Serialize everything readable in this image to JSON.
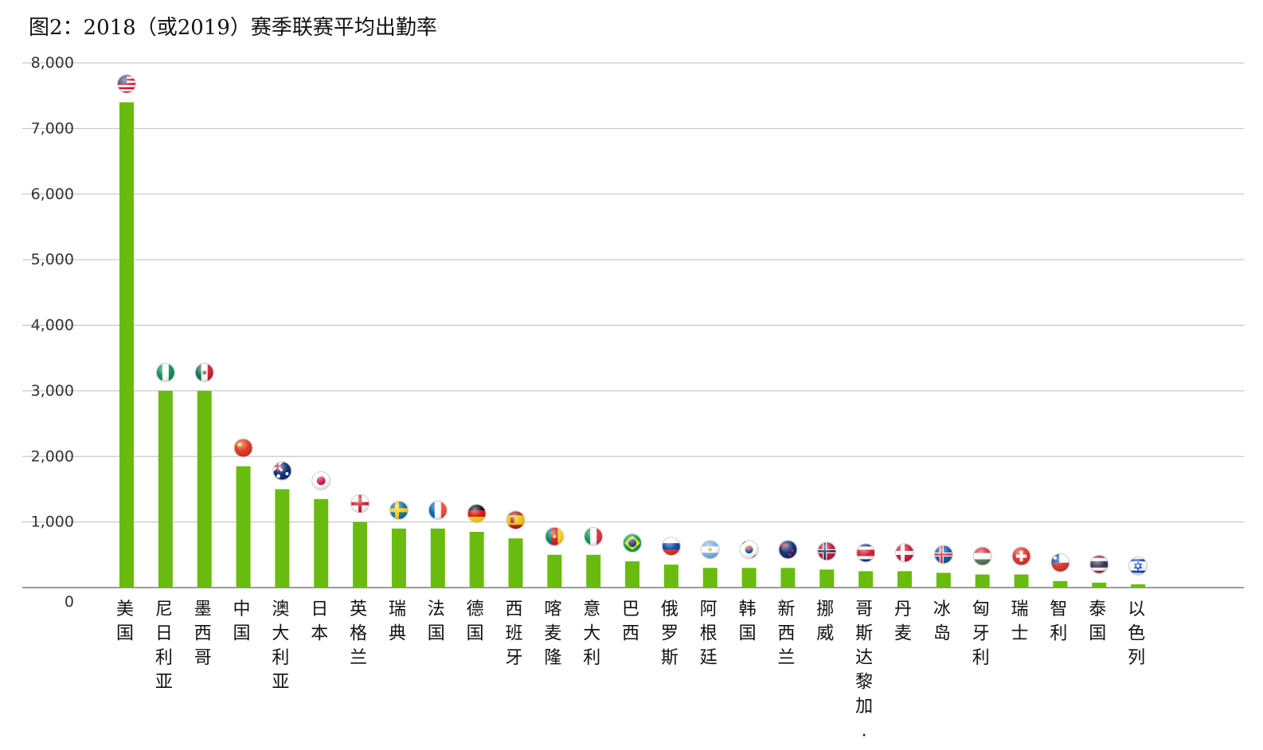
{
  "title": "图2：2018（或2019）赛季联赛平均出勤率",
  "colors": {
    "bar": "#6abb0f",
    "grid": "#bdbdbd",
    "axis": "#7a7a7a"
  },
  "chart_data": {
    "type": "bar",
    "title": "图2：2018（或2019）赛季联赛平均出勤率",
    "xlabel": "",
    "ylabel": "",
    "ylim": [
      0,
      8000
    ],
    "yticks": [
      0,
      1000,
      2000,
      3000,
      4000,
      5000,
      6000,
      7000,
      8000
    ],
    "ytick_labels": [
      "0",
      "1,000",
      "2,000",
      "3,000",
      "4,000",
      "5,000",
      "6,000",
      "7,000",
      "8,000"
    ],
    "grid": true,
    "categories": [
      "美国",
      "尼日利亚",
      "墨西哥",
      "中国",
      "澳大利亚",
      "日本",
      "英格兰",
      "瑞典",
      "法国",
      "德国",
      "西班牙",
      "喀麦隆",
      "意大利",
      "巴西",
      "俄罗斯",
      "阿根廷",
      "韩国",
      "新西兰",
      "挪威",
      "哥斯达黎加.",
      "丹麦",
      "冰岛",
      "匈牙利",
      "瑞士",
      "智利",
      "泰国",
      "以色列"
    ],
    "values": [
      7400,
      3000,
      3000,
      1850,
      1500,
      1350,
      1000,
      900,
      900,
      850,
      750,
      500,
      500,
      400,
      350,
      300,
      300,
      300,
      275,
      250,
      250,
      225,
      200,
      200,
      100,
      75,
      50
    ],
    "flags": [
      "usa-flag-icon",
      "nigeria-flag-icon",
      "mexico-flag-icon",
      "china-flag-icon",
      "australia-flag-icon",
      "japan-flag-icon",
      "england-flag-icon",
      "sweden-flag-icon",
      "france-flag-icon",
      "germany-flag-icon",
      "spain-flag-icon",
      "cameroon-flag-icon",
      "italy-flag-icon",
      "brazil-flag-icon",
      "russia-flag-icon",
      "argentina-flag-icon",
      "korea-flag-icon",
      "new-zealand-flag-icon",
      "norway-flag-icon",
      "costa-rica-flag-icon",
      "denmark-flag-icon",
      "iceland-flag-icon",
      "hungary-flag-icon",
      "switzerland-flag-icon",
      "chile-flag-icon",
      "thailand-flag-icon",
      "israel-flag-icon"
    ]
  }
}
